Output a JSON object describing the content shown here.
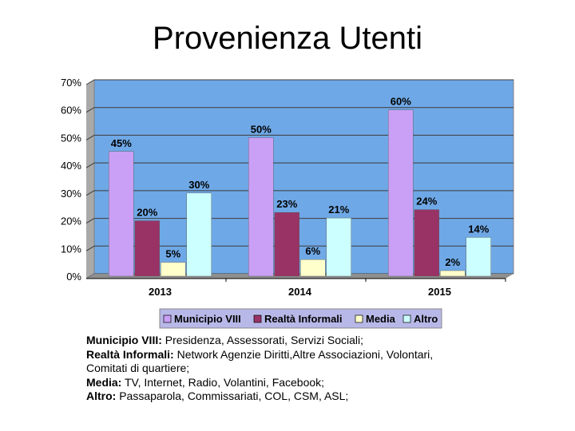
{
  "title": "Provenienza Utenti",
  "colors": {
    "plot_bg": "#6fa8e6",
    "grid": "#3b3b3b"
  },
  "chart_data": {
    "type": "bar",
    "categories": [
      "2013",
      "2014",
      "2015"
    ],
    "series": [
      {
        "name": "Municipio VIII",
        "color": "#c9a0f5",
        "values": [
          45,
          50,
          60
        ],
        "labels": [
          "45%",
          "50%",
          "60%"
        ]
      },
      {
        "name": "Realtà Informali",
        "color": "#993366",
        "values": [
          20,
          23,
          24
        ],
        "labels": [
          "20%",
          "23%",
          "24%"
        ]
      },
      {
        "name": "Media",
        "color": "#ffffcc",
        "values": [
          5,
          6,
          2
        ],
        "labels": [
          "5%",
          "6%",
          "2%"
        ]
      },
      {
        "name": "Altro",
        "color": "#ccffff",
        "values": [
          30,
          21,
          14
        ],
        "labels": [
          "30%",
          "21%",
          "14%"
        ]
      }
    ],
    "ylim": [
      0,
      70
    ],
    "yticks": [
      "0%",
      "10%",
      "20%",
      "30%",
      "40%",
      "50%",
      "60%",
      "70%"
    ],
    "grid": true,
    "legend": "bottom"
  },
  "notes": [
    {
      "key": "Municipio VIII:",
      "text": " Presidenza, Assessorati, Servizi Sociali;"
    },
    {
      "key": "Realtà Informali:",
      "text": " Network Agenzie Diritti,Altre Associazioni, Volontari,"
    },
    {
      "key": "",
      "text": "Comitati di quartiere;"
    },
    {
      "key": "Media:",
      "text": " TV, Internet, Radio, Volantini, Facebook;"
    },
    {
      "key": "Altro:",
      "text": " Passaparola, Commissariati, COL, CSM, ASL;"
    }
  ]
}
